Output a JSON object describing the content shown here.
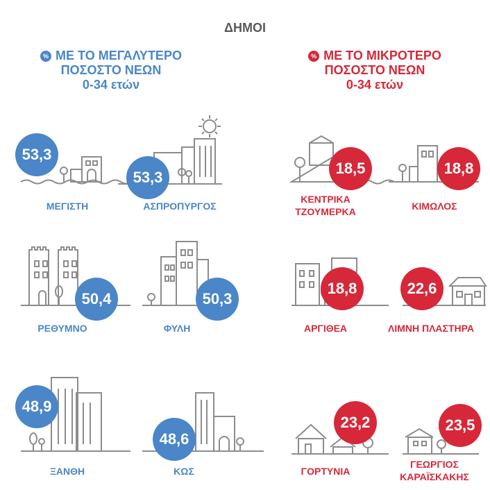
{
  "title": "ΔΗΜΟΙ",
  "colors": {
    "blue": "#4a86c8",
    "red": "#d62839",
    "grey": "#8c8c8c"
  },
  "left_column": {
    "icon": "%",
    "heading_lines": [
      "ΜΕ ΤΟ ΜΕΓΑΛΥΤΕΡΟ",
      "ΠΟΣΟΣΤΟ ΝΕΩΝ",
      "0-34 ετών"
    ],
    "items": [
      {
        "name": "ΜΕΓΙΣΤΗ",
        "value": "53,3"
      },
      {
        "name": "ΑΣΠΡΟΠΥΡΓΟΣ",
        "value": "53,3"
      },
      {
        "name": "ΡΕΘΥΜΝΟ",
        "value": "50,4"
      },
      {
        "name": "ΦΥΛΗ",
        "value": "50,3"
      },
      {
        "name": "ΞΑΝΘΗ",
        "value": "48,9"
      },
      {
        "name": "ΚΩΣ",
        "value": "48,6"
      }
    ]
  },
  "right_column": {
    "icon": "%",
    "heading_lines": [
      "ΜΕ ΤΟ ΜΙΚΡΟΤΕΡΟ",
      "ΠΟΣΟΣΤΟ ΝΕΩΝ",
      "0-34 ετών"
    ],
    "items": [
      {
        "name_lines": [
          "ΚΕΝΤΡΙΚΑ",
          "ΤΖΟΥΜΕΡΚΑ"
        ],
        "value": "18,5"
      },
      {
        "name_lines": [
          "ΚΙΜΩΛΟΣ"
        ],
        "value": "18,8"
      },
      {
        "name_lines": [
          "ΑΡΓΙΘΕΑ"
        ],
        "value": "18,8"
      },
      {
        "name_lines": [
          "ΛΙΜΝΗ ΠΛΑΣΤΗΡΑ"
        ],
        "value": "22,6"
      },
      {
        "name_lines": [
          "ΓΟΡΤΥΝΙΑ"
        ],
        "value": "23,2"
      },
      {
        "name_lines": [
          "ΓΕΩΡΓΙΟΣ",
          "ΚΑΡΑΪΣΚΑΚΗΣ"
        ],
        "value": "23,5"
      }
    ]
  }
}
